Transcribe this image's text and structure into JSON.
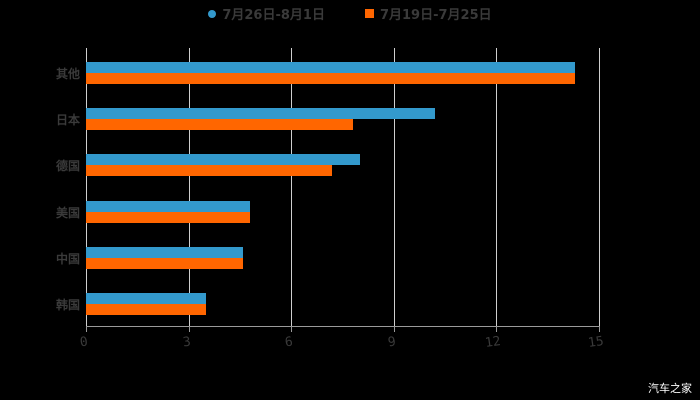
{
  "legend": [
    {
      "label": "7月26日-8月1日",
      "color": "#3399cc",
      "marker": "circle"
    },
    {
      "label": "7月19日-7月25日",
      "color": "#ff6600",
      "marker": "square"
    }
  ],
  "watermark": "汽车之家",
  "chart_data": {
    "type": "bar",
    "orientation": "horizontal",
    "title": "",
    "xlabel": "",
    "ylabel": "",
    "categories": [
      "其他",
      "日本",
      "德国",
      "美国",
      "中国",
      "韩国"
    ],
    "series": [
      {
        "name": "7月26日-8月1日",
        "color": "#3399cc",
        "values": [
          14.3,
          10.2,
          8.0,
          4.8,
          4.6,
          3.5
        ]
      },
      {
        "name": "7月19日-7月25日",
        "color": "#ff6600",
        "values": [
          14.3,
          7.8,
          7.2,
          4.8,
          4.6,
          3.5
        ]
      }
    ],
    "xlim": [
      0,
      15
    ],
    "xticks": [
      "0",
      "3",
      "6",
      "9",
      "12",
      "15"
    ],
    "grid": true,
    "legend_position": "top"
  }
}
